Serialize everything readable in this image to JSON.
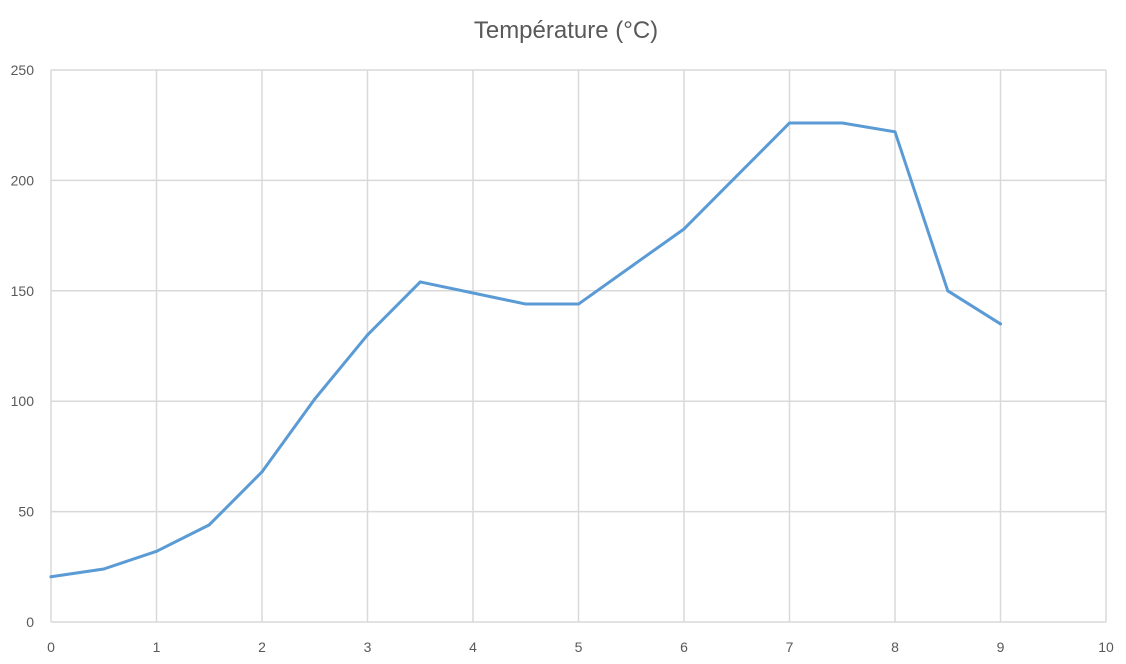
{
  "chart_data": {
    "type": "line",
    "title": "Température (°C)",
    "xlabel": "",
    "ylabel": "",
    "xlim": [
      0,
      10
    ],
    "ylim": [
      0,
      250
    ],
    "x_ticks": [
      0,
      1,
      2,
      3,
      4,
      5,
      6,
      7,
      8,
      9,
      10
    ],
    "y_ticks": [
      0,
      50,
      100,
      150,
      200,
      250
    ],
    "grid": true,
    "legend": "none",
    "series": [
      {
        "name": "Température (°C)",
        "color": "#5B9BD5",
        "x": [
          0,
          0.5,
          1,
          1.5,
          2,
          2.5,
          3,
          3.5,
          4,
          4.5,
          5,
          5.5,
          6,
          6.5,
          7,
          7.5,
          8,
          8.5,
          9
        ],
        "y": [
          20.5,
          24,
          32,
          44,
          68,
          101,
          130,
          154,
          149,
          144,
          144,
          161,
          178,
          202,
          226,
          226,
          222,
          150,
          135
        ]
      }
    ]
  }
}
